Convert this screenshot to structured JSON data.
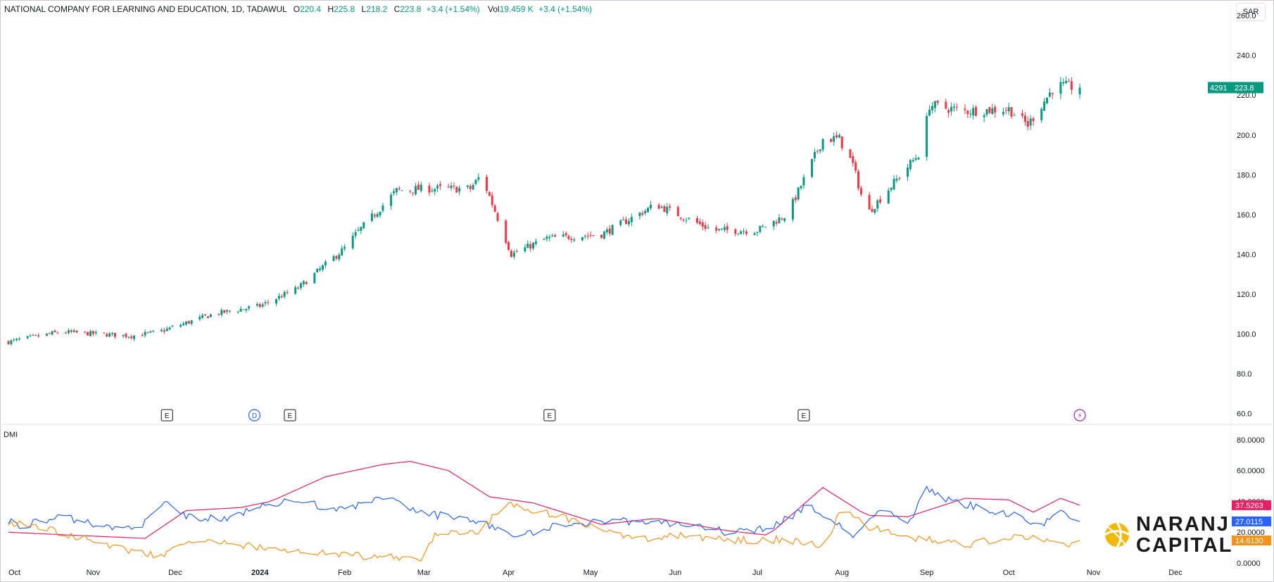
{
  "header": {
    "symbol": "NATIONAL COMPANY FOR LEARNING AND EDUCATION, 1D, TADAWUL",
    "open_label": "O",
    "open": "220.4",
    "high_label": "H",
    "high": "225.8",
    "low_label": "L",
    "low": "218.2",
    "close_label": "C",
    "close": "223.8",
    "change": "+3.4 (+1.54%)",
    "vol_label": "Vol",
    "vol": "19.459 K",
    "vol_change": "+3.4 (+1.54%)"
  },
  "currency": "SAR",
  "price_tag": {
    "ticker": "4291",
    "price": "223.8",
    "color": "#089981"
  },
  "indicator": {
    "name": "DMI"
  },
  "brand": {
    "line1": "NARANJ",
    "line2": "CAPITAL",
    "color": "#f0b90b"
  },
  "colors": {
    "up": "#089981",
    "down": "#f23645",
    "plus_di": "#2962ff",
    "minus_di": "#f7931a",
    "adx": "#e91e63"
  },
  "chart_data": [
    {
      "type": "candlestick",
      "title": "NATIONAL COMPANY FOR LEARNING AND EDUCATION, 1D, TADAWUL",
      "ylabel": "SAR",
      "ylim": [
        57,
        265
      ],
      "yticks": [
        260,
        240,
        220,
        200,
        180,
        160,
        140,
        120,
        100,
        80,
        60
      ],
      "ytick_labels": [
        "260.0",
        "240.0",
        "220.0",
        "200.0",
        "180.0",
        "160.0",
        "140.0",
        "120.0",
        "100.0",
        "80.0",
        "60.0"
      ],
      "x_tick_labels": [
        "Oct",
        "Nov",
        "Dec",
        "2024",
        "Feb",
        "Mar",
        "Apr",
        "May",
        "Jun",
        "Jul",
        "Aug",
        "Sep",
        "Oct",
        "Nov",
        "Dec"
      ],
      "x_tick_dates": [
        "2023-10-01",
        "2023-11-01",
        "2023-12-01",
        "2024-01-01",
        "2024-02-01",
        "2024-03-01",
        "2024-04-01",
        "2024-05-01",
        "2024-06-01",
        "2024-07-01",
        "2024-08-01",
        "2024-09-01",
        "2024-10-01",
        "2024-11-01",
        "2024-12-01"
      ],
      "anchor_dates": [
        "2023-10-01",
        "2023-10-20",
        "2023-11-15",
        "2023-11-25",
        "2023-12-15",
        "2024-01-01",
        "2024-01-15",
        "2024-02-01",
        "2024-02-05",
        "2024-02-20",
        "2024-03-01",
        "2024-03-18",
        "2024-03-22",
        "2024-04-02",
        "2024-04-15",
        "2024-05-05",
        "2024-05-25",
        "2024-06-15",
        "2024-07-01",
        "2024-07-12",
        "2024-07-25",
        "2024-07-31",
        "2024-08-05",
        "2024-08-10",
        "2024-08-30",
        "2024-09-02",
        "2024-09-15",
        "2024-10-01",
        "2024-10-08",
        "2024-10-18",
        "2024-10-27"
      ],
      "anchor_closes": [
        96,
        101,
        99,
        101,
        110,
        114,
        123,
        143,
        150,
        172,
        173,
        173,
        180,
        140,
        148,
        150,
        165,
        152,
        152,
        160,
        198,
        198,
        185,
        160,
        192,
        215,
        212,
        213,
        205,
        225,
        223.8
      ],
      "events": [
        {
          "date": "2023-11-28",
          "label": "E",
          "kind": "earnings"
        },
        {
          "date": "2023-12-30",
          "label": "D",
          "kind": "dividend"
        },
        {
          "date": "2024-01-12",
          "label": "E",
          "kind": "earnings"
        },
        {
          "date": "2024-04-16",
          "label": "E",
          "kind": "earnings"
        },
        {
          "date": "2024-07-18",
          "label": "E",
          "kind": "earnings"
        },
        {
          "date": "2024-10-27",
          "label": "⚡",
          "kind": "split"
        }
      ]
    },
    {
      "type": "line",
      "title": "DMI",
      "ylim": [
        0,
        85
      ],
      "yticks": [
        0,
        20,
        40,
        60,
        80
      ],
      "ytick_labels": [
        "0.0000",
        "20.0000",
        "40.0000",
        "60.0000",
        "80.0000"
      ],
      "series": [
        {
          "name": "ADX",
          "color": "#e91e63",
          "last": "37.5263",
          "dates": [
            "2023-10-01",
            "2023-10-25",
            "2023-11-20",
            "2023-12-05",
            "2023-12-25",
            "2024-01-05",
            "2024-01-25",
            "2024-02-15",
            "2024-02-25",
            "2024-03-10",
            "2024-03-25",
            "2024-04-10",
            "2024-05-05",
            "2024-05-25",
            "2024-06-20",
            "2024-07-05",
            "2024-07-25",
            "2024-08-10",
            "2024-08-25",
            "2024-09-15",
            "2024-10-01",
            "2024-10-10",
            "2024-10-20",
            "2024-10-27"
          ],
          "values": [
            20,
            18,
            16,
            34,
            36,
            40,
            56,
            64,
            66,
            60,
            43,
            39,
            25,
            29,
            21,
            18,
            49,
            31,
            30,
            42,
            41,
            33,
            42,
            37.5
          ]
        },
        {
          "name": "+DI",
          "color": "#2962ff",
          "last": "27.0115",
          "dates": [
            "2023-10-01",
            "2023-10-05",
            "2023-10-20",
            "2023-11-10",
            "2023-11-20",
            "2023-11-28",
            "2023-12-05",
            "2023-12-20",
            "2024-01-01",
            "2024-01-15",
            "2024-02-01",
            "2024-02-15",
            "2024-03-01",
            "2024-03-20",
            "2024-04-05",
            "2024-04-20",
            "2024-05-05",
            "2024-05-20",
            "2024-06-05",
            "2024-06-20",
            "2024-07-05",
            "2024-07-20",
            "2024-08-05",
            "2024-08-15",
            "2024-08-25",
            "2024-09-01",
            "2024-09-10",
            "2024-09-25",
            "2024-10-05",
            "2024-10-12",
            "2024-10-20",
            "2024-10-27"
          ],
          "values": [
            28,
            24,
            30,
            22,
            26,
            40,
            30,
            28,
            38,
            40,
            34,
            43,
            32,
            28,
            17,
            25,
            27,
            27,
            25,
            20,
            22,
            37,
            18,
            35,
            25,
            48,
            40,
            34,
            31,
            22,
            35,
            27
          ]
        },
        {
          "name": "-DI",
          "color": "#f7931a",
          "last": "14.6130",
          "dates": [
            "2023-10-01",
            "2023-10-20",
            "2023-11-10",
            "2023-11-25",
            "2023-12-05",
            "2024-01-01",
            "2024-02-01",
            "2024-03-01",
            "2024-03-05",
            "2024-03-20",
            "2024-04-01",
            "2024-04-20",
            "2024-05-05",
            "2024-05-20",
            "2024-06-05",
            "2024-06-20",
            "2024-07-10",
            "2024-07-25",
            "2024-08-02",
            "2024-08-10",
            "2024-08-25",
            "2024-09-15",
            "2024-10-01",
            "2024-10-10",
            "2024-10-20",
            "2024-10-27"
          ],
          "values": [
            27,
            20,
            10,
            4,
            15,
            10,
            5,
            3,
            18,
            20,
            38,
            30,
            21,
            15,
            18,
            15,
            15,
            12,
            37,
            24,
            17,
            12,
            16,
            18,
            11,
            14.6
          ]
        }
      ],
      "legend_position": "top-left"
    }
  ]
}
